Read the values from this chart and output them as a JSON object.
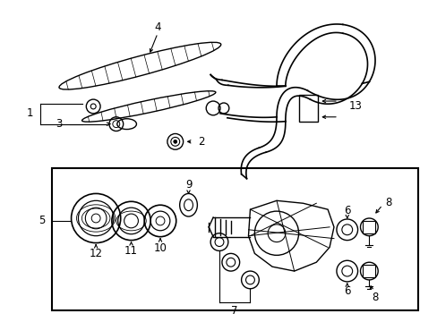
{
  "background_color": "#ffffff",
  "line_color": "#000000",
  "text_color": "#000000",
  "fig_width": 4.89,
  "fig_height": 3.6,
  "dpi": 100,
  "label_fontsize": 8.5
}
